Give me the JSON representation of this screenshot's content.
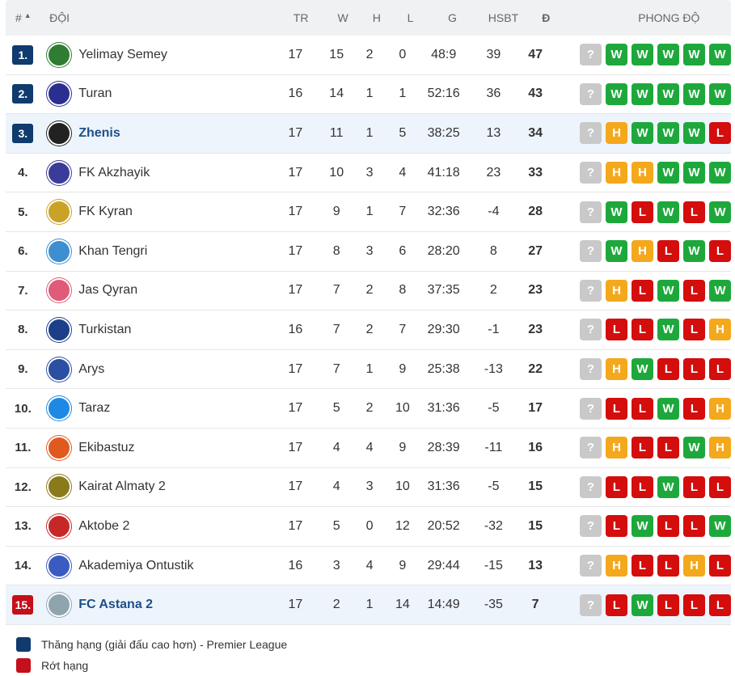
{
  "header": {
    "pos": "#",
    "sort_arrow": "▲",
    "team": "ĐỘI",
    "tr": "TR",
    "w": "W",
    "h": "H",
    "l": "L",
    "g": "G",
    "hsbt": "HSBT",
    "d": "Đ",
    "form": "PHONG ĐỘ"
  },
  "colors": {
    "promotion": "#0f3b6e",
    "relegation": "#c4101a",
    "win": "#1ea83c",
    "loss": "#d40d0d",
    "draw": "#f4a81c",
    "unknown": "#c9c9c9"
  },
  "rows": [
    {
      "pos": "1.",
      "zone": "promotion",
      "highlight": false,
      "team": "Yelimay Semey",
      "logo": "yelimay-logo",
      "tr": "17",
      "w": "15",
      "h": "2",
      "l": "0",
      "g": "48:9",
      "hsbt": "39",
      "pts": "47",
      "form": [
        "?",
        "W",
        "W",
        "W",
        "W",
        "W"
      ]
    },
    {
      "pos": "2.",
      "zone": "promotion",
      "highlight": false,
      "team": "Turan",
      "logo": "turan-logo",
      "tr": "16",
      "w": "14",
      "h": "1",
      "l": "1",
      "g": "52:16",
      "hsbt": "36",
      "pts": "43",
      "form": [
        "?",
        "W",
        "W",
        "W",
        "W",
        "W"
      ]
    },
    {
      "pos": "3.",
      "zone": "promotion",
      "highlight": true,
      "team": "Zhenis",
      "logo": "zhenis-logo",
      "tr": "17",
      "w": "11",
      "h": "1",
      "l": "5",
      "g": "38:25",
      "hsbt": "13",
      "pts": "34",
      "form": [
        "?",
        "H",
        "W",
        "W",
        "W",
        "L"
      ]
    },
    {
      "pos": "4.",
      "zone": "",
      "highlight": false,
      "team": "FK Akzhayik",
      "logo": "akzhayik-logo",
      "tr": "17",
      "w": "10",
      "h": "3",
      "l": "4",
      "g": "41:18",
      "hsbt": "23",
      "pts": "33",
      "form": [
        "?",
        "H",
        "H",
        "W",
        "W",
        "W"
      ]
    },
    {
      "pos": "5.",
      "zone": "",
      "highlight": false,
      "team": "FK Kyran",
      "logo": "kyran-logo",
      "tr": "17",
      "w": "9",
      "h": "1",
      "l": "7",
      "g": "32:36",
      "hsbt": "-4",
      "pts": "28",
      "form": [
        "?",
        "W",
        "L",
        "W",
        "L",
        "W"
      ]
    },
    {
      "pos": "6.",
      "zone": "",
      "highlight": false,
      "team": "Khan Tengri",
      "logo": "khan-tengri-logo",
      "tr": "17",
      "w": "8",
      "h": "3",
      "l": "6",
      "g": "28:20",
      "hsbt": "8",
      "pts": "27",
      "form": [
        "?",
        "W",
        "H",
        "L",
        "W",
        "L"
      ]
    },
    {
      "pos": "7.",
      "zone": "",
      "highlight": false,
      "team": "Jas Qyran",
      "logo": "jas-qyran-logo",
      "tr": "17",
      "w": "7",
      "h": "2",
      "l": "8",
      "g": "37:35",
      "hsbt": "2",
      "pts": "23",
      "form": [
        "?",
        "H",
        "L",
        "W",
        "L",
        "W"
      ]
    },
    {
      "pos": "8.",
      "zone": "",
      "highlight": false,
      "team": "Turkistan",
      "logo": "turkistan-logo",
      "tr": "16",
      "w": "7",
      "h": "2",
      "l": "7",
      "g": "29:30",
      "hsbt": "-1",
      "pts": "23",
      "form": [
        "?",
        "L",
        "L",
        "W",
        "L",
        "H"
      ]
    },
    {
      "pos": "9.",
      "zone": "",
      "highlight": false,
      "team": "Arys",
      "logo": "arys-logo",
      "tr": "17",
      "w": "7",
      "h": "1",
      "l": "9",
      "g": "25:38",
      "hsbt": "-13",
      "pts": "22",
      "form": [
        "?",
        "H",
        "W",
        "L",
        "L",
        "L"
      ]
    },
    {
      "pos": "10.",
      "zone": "",
      "highlight": false,
      "team": "Taraz",
      "logo": "taraz-logo",
      "tr": "17",
      "w": "5",
      "h": "2",
      "l": "10",
      "g": "31:36",
      "hsbt": "-5",
      "pts": "17",
      "form": [
        "?",
        "L",
        "L",
        "W",
        "L",
        "H"
      ]
    },
    {
      "pos": "11.",
      "zone": "",
      "highlight": false,
      "team": "Ekibastuz",
      "logo": "ekibastuz-logo",
      "tr": "17",
      "w": "4",
      "h": "4",
      "l": "9",
      "g": "28:39",
      "hsbt": "-11",
      "pts": "16",
      "form": [
        "?",
        "H",
        "L",
        "L",
        "W",
        "H"
      ]
    },
    {
      "pos": "12.",
      "zone": "",
      "highlight": false,
      "team": "Kairat Almaty 2",
      "logo": "kairat-logo",
      "tr": "17",
      "w": "4",
      "h": "3",
      "l": "10",
      "g": "31:36",
      "hsbt": "-5",
      "pts": "15",
      "form": [
        "?",
        "L",
        "L",
        "W",
        "L",
        "L"
      ]
    },
    {
      "pos": "13.",
      "zone": "",
      "highlight": false,
      "team": "Aktobe 2",
      "logo": "aktobe-logo",
      "tr": "17",
      "w": "5",
      "h": "0",
      "l": "12",
      "g": "20:52",
      "hsbt": "-32",
      "pts": "15",
      "form": [
        "?",
        "L",
        "W",
        "L",
        "L",
        "W"
      ]
    },
    {
      "pos": "14.",
      "zone": "",
      "highlight": false,
      "team": "Akademiya Ontustik",
      "logo": "akademiya-logo",
      "tr": "16",
      "w": "3",
      "h": "4",
      "l": "9",
      "g": "29:44",
      "hsbt": "-15",
      "pts": "13",
      "form": [
        "?",
        "H",
        "L",
        "L",
        "H",
        "L"
      ]
    },
    {
      "pos": "15.",
      "zone": "relegation",
      "highlight": true,
      "team": "FC Astana 2",
      "logo": "astana-logo",
      "tr": "17",
      "w": "2",
      "h": "1",
      "l": "14",
      "g": "14:49",
      "hsbt": "-35",
      "pts": "7",
      "form": [
        "?",
        "L",
        "W",
        "L",
        "L",
        "L"
      ]
    }
  ],
  "legend": [
    {
      "color": "#0f3b6e",
      "label": "Thăng hạng (giải đấu cao hơn) - Premier League"
    },
    {
      "color": "#c4101a",
      "label": "Rớt hạng"
    }
  ]
}
